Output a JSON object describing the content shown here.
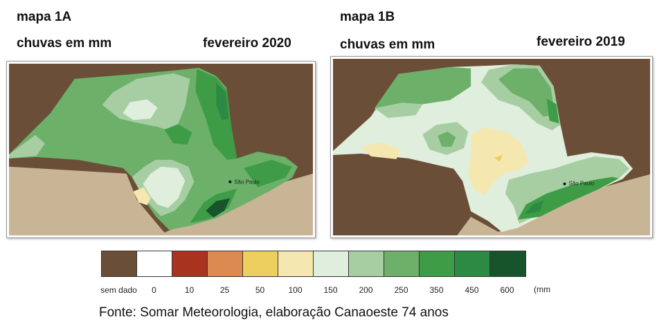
{
  "map_a": {
    "title": "mapa 1A",
    "subtitle": "chuvas em mm",
    "period": "fevereiro 2020",
    "city_label": "São Paulo"
  },
  "map_b": {
    "title": "mapa 1B",
    "subtitle": "chuvas em mm",
    "period": "fevereiro 2019",
    "city_label": "São Paulo"
  },
  "legend": {
    "unit": "(mm",
    "classes": [
      {
        "label": "sem dado",
        "color": "#6b4e37"
      },
      {
        "label": "0",
        "color": "#ffffff"
      },
      {
        "label": "10",
        "color": "#a8341f"
      },
      {
        "label": "25",
        "color": "#dc8a4f"
      },
      {
        "label": "50",
        "color": "#eccf5f"
      },
      {
        "label": "100",
        "color": "#f5e7b0"
      },
      {
        "label": "150",
        "color": "#dfeedd"
      },
      {
        "label": "200",
        "color": "#a6cea2"
      },
      {
        "label": "250",
        "color": "#6db06a"
      },
      {
        "label": "350",
        "color": "#3f9c46"
      },
      {
        "label": "450",
        "color": "#2d8a45"
      },
      {
        "label": "600",
        "color": "#17542c"
      }
    ]
  },
  "colors": {
    "neighbor_land": "#6b4e37",
    "ocean": "#c8b595",
    "city_marker": "#111111"
  },
  "source": "Fonte: Somar Meteorologia, elaboração Canaoeste 74 anos"
}
